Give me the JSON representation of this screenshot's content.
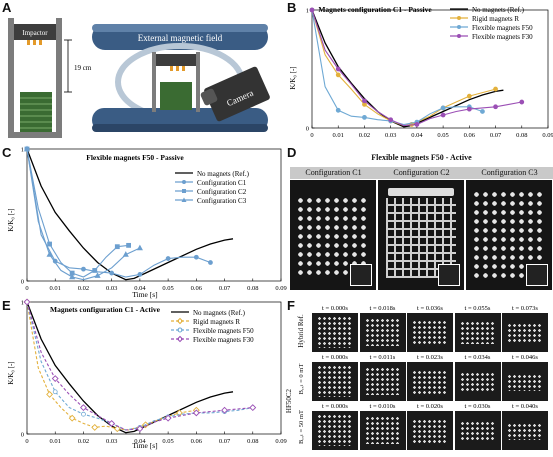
{
  "panels": {
    "A": {
      "letter": "A",
      "impactor_label": "Impactor",
      "height_label": "19 cm",
      "field_label": "External magnetic field",
      "camera_label": "Camera"
    },
    "B": {
      "letter": "B",
      "title": "Magnets configuration C1 - Passive",
      "ylabel": "K/K₀ [-]",
      "xticks": [
        "0",
        "0.01",
        "0.02",
        "0.03",
        "0.04",
        "0.05",
        "0.06",
        "0.07",
        "0.08",
        "0.09"
      ],
      "yticks": [
        "0",
        "1"
      ],
      "legend": [
        "No magnets (Ref.)",
        "Rigid magnets R",
        "Flexible magnets F50",
        "Flexible magnets F30"
      ]
    },
    "C": {
      "letter": "C",
      "title": "Flexible magnets F50 - Passive",
      "ylabel": "K/K₀ [-]",
      "xlabel": "Time [s]",
      "xticks": [
        "0",
        "0.01",
        "0.02",
        "0.03",
        "0.04",
        "0.05",
        "0.06",
        "0.07",
        "0.08",
        "0.09"
      ],
      "yticks": [
        "0",
        "1"
      ],
      "legend": [
        "No magnets (Ref.)",
        "Configuration C1",
        "Configuration C2",
        "Configuration C3"
      ]
    },
    "D": {
      "letter": "D",
      "title": "Flexible magnets F50 - Active",
      "configs": [
        "Configuration C1",
        "Configuration C2",
        "Configuration C3"
      ]
    },
    "E": {
      "letter": "E",
      "title": "Magnets configuration C1 - Active",
      "ylabel": "K/K₀ [-]",
      "xlabel": "Time [s]",
      "xticks": [
        "0",
        "0.01",
        "0.02",
        "0.03",
        "0.04",
        "0.05",
        "0.06",
        "0.07",
        "0.08",
        "0.09"
      ],
      "yticks": [
        "0",
        "1"
      ],
      "legend": [
        "No magnets (Ref.)",
        "Rigid magnets R",
        "Flexible magnets F50",
        "Flexible magnets F30"
      ]
    },
    "F": {
      "letter": "F",
      "row_labels": [
        "Hybrid Ref.",
        "Bₑₓₜ = 0 mT",
        "Bₑₓₜ = 50 mT"
      ],
      "group_label": "HF50C2",
      "row1_times": [
        "t = 0.000s",
        "t = 0.018s",
        "t = 0.036s",
        "t = 0.055s",
        "t = 0.073s"
      ],
      "row2_times": [
        "t = 0.000s",
        "t = 0.011s",
        "t = 0.023s",
        "t = 0.034s",
        "t = 0.046s"
      ],
      "row3_times": [
        "t = 0.000s",
        "t = 0.010s",
        "t = 0.020s",
        "t = 0.030s",
        "t = 0.040s"
      ]
    }
  },
  "colors": {
    "ref": "#000000",
    "rigid": "#e3b13c",
    "f50": "#6fa9d4",
    "f30": "#9b4fb5",
    "c1": "#6c9fcf",
    "c2": "#6c9fcf",
    "c3": "#6c9fcf"
  },
  "chart_data": [
    {
      "id": "B",
      "type": "line",
      "title": "Magnets configuration C1 - Passive",
      "ylabel": "K/K₀ [-]",
      "xlim": [
        0,
        0.09
      ],
      "ylim": [
        0,
        1
      ],
      "series": [
        {
          "name": "No magnets (Ref.)",
          "color": "#000000",
          "marker": "none",
          "x": [
            0,
            0.005,
            0.01,
            0.015,
            0.02,
            0.025,
            0.03,
            0.035,
            0.038,
            0.042,
            0.05,
            0.06,
            0.065,
            0.07,
            0.073
          ],
          "y": [
            1.0,
            0.72,
            0.52,
            0.38,
            0.25,
            0.14,
            0.06,
            0.01,
            0.02,
            0.06,
            0.14,
            0.24,
            0.28,
            0.31,
            0.32
          ]
        },
        {
          "name": "Rigid magnets R",
          "color": "#e3b13c",
          "marker": "o",
          "x": [
            0,
            0.005,
            0.01,
            0.015,
            0.02,
            0.025,
            0.03,
            0.035,
            0.038,
            0.045,
            0.05,
            0.055,
            0.06,
            0.065,
            0.07
          ],
          "y": [
            1.0,
            0.62,
            0.45,
            0.33,
            0.2,
            0.12,
            0.06,
            0.02,
            0.03,
            0.1,
            0.17,
            0.22,
            0.27,
            0.3,
            0.33
          ]
        },
        {
          "name": "Flexible magnets F50",
          "color": "#6fa9d4",
          "marker": "o",
          "x": [
            0,
            0.005,
            0.01,
            0.015,
            0.02,
            0.025,
            0.03,
            0.035,
            0.04,
            0.045,
            0.05,
            0.055,
            0.06,
            0.065
          ],
          "y": [
            1.0,
            0.35,
            0.15,
            0.1,
            0.09,
            0.07,
            0.06,
            0.03,
            0.05,
            0.12,
            0.17,
            0.18,
            0.18,
            0.14
          ]
        },
        {
          "name": "Flexible magnets F30",
          "color": "#9b4fb5",
          "marker": "o",
          "x": [
            0,
            0.005,
            0.01,
            0.015,
            0.02,
            0.025,
            0.03,
            0.035,
            0.04,
            0.045,
            0.05,
            0.055,
            0.06,
            0.065,
            0.07,
            0.075,
            0.08
          ],
          "y": [
            1.0,
            0.66,
            0.5,
            0.37,
            0.23,
            0.14,
            0.07,
            0.02,
            0.03,
            0.08,
            0.11,
            0.14,
            0.16,
            0.17,
            0.18,
            0.2,
            0.22
          ]
        }
      ]
    },
    {
      "id": "C",
      "type": "line",
      "title": "Flexible magnets F50 - Passive",
      "xlabel": "Time [s]",
      "ylabel": "K/K₀ [-]",
      "xlim": [
        0,
        0.09
      ],
      "ylim": [
        0,
        1
      ],
      "series": [
        {
          "name": "No magnets (Ref.)",
          "color": "#000000",
          "marker": "none",
          "x": [
            0,
            0.005,
            0.01,
            0.015,
            0.02,
            0.025,
            0.03,
            0.035,
            0.038,
            0.042,
            0.05,
            0.06,
            0.065,
            0.07,
            0.073
          ],
          "y": [
            1.0,
            0.72,
            0.52,
            0.38,
            0.25,
            0.14,
            0.06,
            0.01,
            0.02,
            0.06,
            0.14,
            0.24,
            0.28,
            0.31,
            0.32
          ]
        },
        {
          "name": "Configuration C1",
          "color": "#6c9fcf",
          "marker": "o",
          "x": [
            0,
            0.005,
            0.01,
            0.015,
            0.02,
            0.025,
            0.03,
            0.035,
            0.04,
            0.045,
            0.05,
            0.055,
            0.06,
            0.065
          ],
          "y": [
            1.0,
            0.35,
            0.15,
            0.1,
            0.09,
            0.07,
            0.06,
            0.03,
            0.05,
            0.12,
            0.17,
            0.18,
            0.18,
            0.14
          ]
        },
        {
          "name": "Configuration C2",
          "color": "#6c9fcf",
          "marker": "s",
          "x": [
            0,
            0.004,
            0.008,
            0.012,
            0.016,
            0.02,
            0.024,
            0.028,
            0.032,
            0.036
          ],
          "y": [
            1.0,
            0.55,
            0.28,
            0.14,
            0.06,
            0.03,
            0.08,
            0.18,
            0.26,
            0.27
          ]
        },
        {
          "name": "Configuration C3",
          "color": "#6c9fcf",
          "marker": "^",
          "x": [
            0,
            0.004,
            0.008,
            0.012,
            0.016,
            0.02,
            0.025,
            0.03,
            0.035,
            0.04
          ],
          "y": [
            1.0,
            0.45,
            0.2,
            0.08,
            0.03,
            0.01,
            0.04,
            0.1,
            0.2,
            0.25
          ]
        }
      ]
    },
    {
      "id": "E",
      "type": "line",
      "title": "Magnets configuration C1 - Active",
      "xlabel": "Time [s]",
      "ylabel": "K/K₀ [-]",
      "xlim": [
        0,
        0.09
      ],
      "ylim": [
        0,
        1
      ],
      "series": [
        {
          "name": "No magnets (Ref.)",
          "color": "#000000",
          "marker": "none",
          "dash": false,
          "x": [
            0,
            0.005,
            0.01,
            0.015,
            0.02,
            0.025,
            0.03,
            0.035,
            0.038,
            0.042,
            0.05,
            0.06,
            0.065,
            0.07,
            0.073
          ],
          "y": [
            1.0,
            0.72,
            0.52,
            0.38,
            0.25,
            0.14,
            0.06,
            0.01,
            0.02,
            0.06,
            0.14,
            0.24,
            0.28,
            0.31,
            0.32
          ]
        },
        {
          "name": "Rigid magnets R",
          "color": "#e3b13c",
          "marker": "d",
          "dash": true,
          "x": [
            0,
            0.004,
            0.008,
            0.012,
            0.016,
            0.02,
            0.024,
            0.028,
            0.032,
            0.036,
            0.042,
            0.048,
            0.054,
            0.06
          ],
          "y": [
            1.0,
            0.5,
            0.3,
            0.2,
            0.12,
            0.08,
            0.05,
            0.06,
            0.04,
            0.03,
            0.07,
            0.12,
            0.16,
            0.18
          ]
        },
        {
          "name": "Flexible magnets F50",
          "color": "#6fa9d4",
          "marker": "o",
          "dash": true,
          "x": [
            0,
            0.005,
            0.01,
            0.015,
            0.02,
            0.025,
            0.03,
            0.035,
            0.04,
            0.045,
            0.05,
            0.055,
            0.06,
            0.065,
            0.07,
            0.075,
            0.08
          ],
          "y": [
            1.0,
            0.55,
            0.32,
            0.2,
            0.15,
            0.12,
            0.08,
            0.03,
            0.05,
            0.1,
            0.13,
            0.15,
            0.16,
            0.16,
            0.17,
            0.18,
            0.2
          ]
        },
        {
          "name": "Flexible magnets F30",
          "color": "#9b4fb5",
          "marker": "d",
          "dash": true,
          "x": [
            0,
            0.005,
            0.01,
            0.015,
            0.02,
            0.025,
            0.03,
            0.035,
            0.04,
            0.045,
            0.05,
            0.055,
            0.06,
            0.065,
            0.07,
            0.075,
            0.08
          ],
          "y": [
            1.0,
            0.62,
            0.42,
            0.3,
            0.2,
            0.14,
            0.08,
            0.03,
            0.04,
            0.09,
            0.12,
            0.14,
            0.16,
            0.17,
            0.18,
            0.19,
            0.2
          ]
        }
      ]
    }
  ]
}
